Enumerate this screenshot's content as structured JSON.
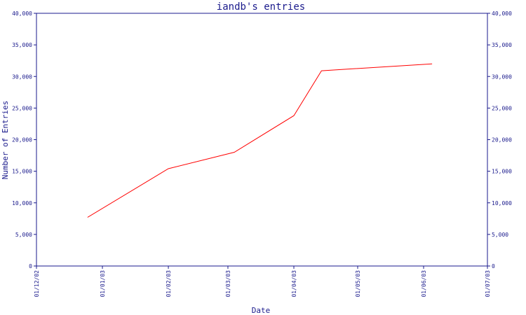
{
  "chart_data": {
    "type": "line",
    "title": "iandb's entries",
    "xlabel": "Date",
    "ylabel": "Number of Entries",
    "x_ticks": [
      "01/12/02",
      "01/01/03",
      "01/02/03",
      "01/03/03",
      "01/04/03",
      "01/05/03",
      "01/06/03",
      "01/07/03"
    ],
    "y_ticks": [
      "0",
      "5,000",
      "10,000",
      "15,000",
      "20,000",
      "25,000",
      "30,000",
      "35,000",
      "40,000"
    ],
    "ylim": [
      0,
      40000
    ],
    "grid": false,
    "series": [
      {
        "color": "#ff0000",
        "x": [
          "2002-12-25",
          "2003-02-01",
          "2003-03-04",
          "2003-04-01",
          "2003-04-14",
          "2003-06-05"
        ],
        "values": [
          7700,
          15400,
          18000,
          23800,
          30900,
          32000
        ]
      }
    ]
  }
}
